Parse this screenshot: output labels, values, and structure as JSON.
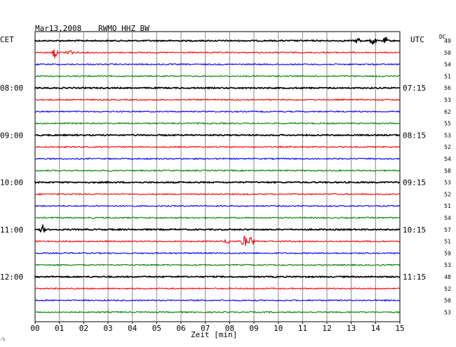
{
  "header": {
    "date": "Mar13,2008",
    "station": "RWMO HHZ BW",
    "left_tz": "CET",
    "right_tz": "UTC",
    "dc_label": "DC",
    "footer_mark": "⁄₁"
  },
  "chart_data": {
    "type": "helicorder",
    "xlabel": "Zeit [min]",
    "x_ticks": [
      "00",
      "01",
      "02",
      "03",
      "04",
      "05",
      "06",
      "07",
      "08",
      "09",
      "10",
      "11",
      "12",
      "13",
      "14",
      "15"
    ],
    "xlim": [
      0,
      15
    ],
    "colors": [
      "#000000",
      "#ff0000",
      "#0000ff",
      "#008000"
    ],
    "left_time_labels": [
      {
        "trace": 4,
        "text": "08:00"
      },
      {
        "trace": 8,
        "text": "09:00"
      },
      {
        "trace": 12,
        "text": "10:00"
      },
      {
        "trace": 16,
        "text": "11:00"
      },
      {
        "trace": 20,
        "text": "12:00"
      }
    ],
    "right_time_labels": [
      {
        "trace": 4,
        "text": "07:15"
      },
      {
        "trace": 8,
        "text": "08:15"
      },
      {
        "trace": 12,
        "text": "09:15"
      },
      {
        "trace": 16,
        "text": "10:15"
      },
      {
        "trace": 20,
        "text": "11:15"
      }
    ],
    "dc_values": [
      "49",
      "50",
      "54",
      "51",
      "56",
      "53",
      "62",
      "55",
      "53",
      "52",
      "54",
      "58",
      "53",
      "52",
      "51",
      "54",
      "57",
      "51",
      "59",
      "53",
      "48",
      "52",
      "50",
      "53"
    ],
    "events": [
      {
        "trace": 1,
        "minute": 0.8,
        "amp": 9
      },
      {
        "trace": 1,
        "minute": 1.4,
        "amp": 10
      },
      {
        "trace": 0,
        "minute": 13.3,
        "amp": 4
      },
      {
        "trace": 0,
        "minute": 13.9,
        "amp": 6
      },
      {
        "trace": 0,
        "minute": 14.4,
        "amp": 4
      },
      {
        "trace": 16,
        "minute": 0.3,
        "amp": 5
      },
      {
        "trace": 17,
        "minute": 8.6,
        "amp": 9
      },
      {
        "trace": 17,
        "minute": 8.9,
        "amp": 8
      },
      {
        "trace": 17,
        "minute": 7.9,
        "amp": 4
      }
    ]
  }
}
